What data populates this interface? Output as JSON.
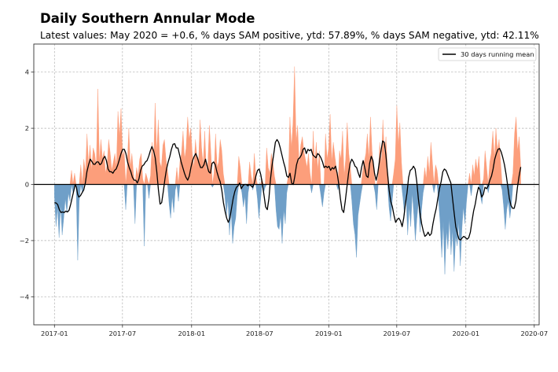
{
  "chart_data": {
    "type": "area",
    "title": "Daily Southern Annular Mode",
    "subtitle": "Latest values: May 2020 = +0.6, % days SAM positive, ytd: 57.89%, % days SAM negative, ytd: 42.11%",
    "xlabel": "",
    "ylabel": "",
    "ylim": [
      -5,
      5
    ],
    "xlim": [
      "2016-11-07",
      "2020-07-14"
    ],
    "start_date": "2017-01-01",
    "end_date": "2020-05-26",
    "grid": true,
    "legend": {
      "position": "top-right",
      "entries": [
        "30 days running mean"
      ]
    },
    "yticks": [
      -4,
      -2,
      0,
      2,
      4
    ],
    "ytick_labels": [
      "−4",
      "−2",
      "0",
      "2",
      "4"
    ],
    "xticks": [
      "2017-01",
      "2017-07",
      "2018-01",
      "2018-07",
      "2019-01",
      "2019-07",
      "2020-01",
      "2020-07"
    ],
    "colors": {
      "positive": "#fc9e7b",
      "negative": "#6f9fc8",
      "mean": "#000000",
      "zero_line": "#000000",
      "grid": "#b0b0b0"
    },
    "daily_step_days": 3,
    "daily_values": [
      -0.4,
      -1.5,
      -0.8,
      -1.9,
      -0.7,
      -1.8,
      -1.2,
      -0.5,
      -1.0,
      -0.3,
      -0.6,
      0.5,
      -0.3,
      0.4,
      -0.1,
      -2.7,
      -0.6,
      0.7,
      -0.3,
      0.9,
      0.4,
      1.8,
      0.7,
      1.4,
      0.5,
      1.3,
      1.1,
      0.6,
      3.4,
      0.8,
      1.6,
      0.9,
      1.2,
      0.4,
      0.7,
      1.6,
      1.1,
      0.5,
      0.8,
      1.1,
      0.6,
      2.6,
      1.7,
      2.7,
      1.0,
      1.2,
      -0.9,
      0.7,
      2.0,
      0.6,
      1.1,
      0.4,
      -1.4,
      0.6,
      0.3,
      0.9,
      1.1,
      0.2,
      -2.2,
      0.4,
      0.2,
      -0.5,
      0.3,
      1.5,
      0.8,
      2.9,
      1.1,
      2.3,
      0.8,
      0.6,
      1.4,
      1.6,
      0.9,
      0.5,
      -0.7,
      -1.2,
      -0.4,
      -1.0,
      -0.2,
      0.6,
      -0.6,
      0.8,
      1.1,
      1.9,
      0.9,
      1.3,
      2.4,
      1.6,
      2.0,
      1.1,
      0.6,
      1.6,
      1.0,
      0.8,
      2.3,
      1.3,
      0.7,
      1.9,
      0.5,
      0.7,
      2.1,
      1.1,
      -0.1,
      0.4,
      1.8,
      0.6,
      0.8,
      1.6,
      1.2,
      0.4,
      -0.4,
      -1.1,
      -0.5,
      -1.8,
      -0.9,
      -2.1,
      -1.5,
      -1.2,
      -0.4,
      1.0,
      0.6,
      -0.3,
      -0.8,
      -0.4,
      -1.4,
      -0.3,
      0.8,
      0.3,
      -0.2,
      1.1,
      0.3,
      -0.5,
      -1.2,
      -0.6,
      0.2,
      -0.3,
      -0.1,
      1.3,
      0.6,
      0.4,
      1.1,
      0.8,
      0.3,
      -0.9,
      -1.5,
      -1.6,
      -1.1,
      -2.1,
      -0.9,
      -1.4,
      -0.3,
      0.3,
      2.4,
      1.3,
      2.2,
      4.2,
      1.5,
      2.1,
      0.7,
      1.4,
      1.7,
      1.2,
      0.9,
      0.6,
      1.1,
      0.4,
      -0.3,
      1.9,
      0.7,
      1.5,
      0.5,
      1.2,
      -0.4,
      -0.8,
      -0.3,
      1.8,
      0.9,
      1.3,
      2.5,
      0.8,
      1.5,
      1.0,
      0.6,
      -0.2,
      1.2,
      0.9,
      1.9,
      0.3,
      0.9,
      2.2,
      1.1,
      0.6,
      -0.6,
      -1.4,
      -1.8,
      -2.6,
      -1.1,
      -0.7,
      -0.3,
      0.5,
      0.8,
      1.1,
      1.8,
      0.9,
      2.4,
      1.2,
      0.6,
      -0.3,
      -0.9,
      0.3,
      1.5,
      0.7,
      2.3,
      1.0,
      1.7,
      0.5,
      -0.8,
      -1.3,
      -0.6,
      0.4,
      0.9,
      2.8,
      1.4,
      2.2,
      0.8,
      -0.5,
      -1.1,
      -0.4,
      -1.8,
      -0.8,
      -1.5,
      -0.3,
      -1.1,
      -2.0,
      -1.2,
      -0.6,
      -1.7,
      -0.9,
      -0.3,
      0.6,
      0.2,
      1.0,
      0.4,
      1.5,
      0.8,
      -0.3,
      0.7,
      0.5,
      -0.6,
      -1.4,
      -2.6,
      -1.3,
      -3.2,
      -1.6,
      -2.3,
      -1.2,
      -2.5,
      -1.6,
      -3.1,
      -1.8,
      -2.2,
      -1.3,
      -2.9,
      -1.6,
      -0.8,
      -1.4,
      -0.6,
      0.0,
      0.4,
      -0.4,
      0.7,
      0.3,
      0.9,
      0.5,
      1.0,
      -0.4,
      -0.7,
      0.2,
      1.2,
      0.6,
      -0.3,
      0.8,
      1.1,
      1.9,
      0.9,
      2.0,
      1.2,
      1.6,
      0.8,
      -0.2,
      -0.8,
      -1.6,
      -0.9,
      -0.6,
      -1.2,
      -0.7,
      0.4,
      1.8,
      2.4,
      1.2,
      1.7,
      0.6
    ],
    "running_mean": [
      [
        0,
        -0.65
      ],
      [
        4,
        -0.66
      ],
      [
        8,
        -0.72
      ],
      [
        12,
        -0.9
      ],
      [
        16,
        -1.0
      ],
      [
        20,
        -0.98
      ],
      [
        24,
        -1.0
      ],
      [
        28,
        -0.95
      ],
      [
        32,
        -0.98
      ],
      [
        36,
        -0.92
      ],
      [
        40,
        -0.7
      ],
      [
        44,
        -0.45
      ],
      [
        48,
        -0.2
      ],
      [
        51,
        0.0
      ],
      [
        54,
        -0.1
      ],
      [
        57,
        -0.35
      ],
      [
        60,
        -0.45
      ],
      [
        64,
        -0.4
      ],
      [
        68,
        -0.3
      ],
      [
        72,
        -0.2
      ],
      [
        76,
        0.05
      ],
      [
        80,
        0.45
      ],
      [
        84,
        0.7
      ],
      [
        88,
        0.9
      ],
      [
        92,
        0.82
      ],
      [
        96,
        0.72
      ],
      [
        100,
        0.72
      ],
      [
        104,
        0.8
      ],
      [
        108,
        0.8
      ],
      [
        112,
        0.7
      ],
      [
        116,
        0.75
      ],
      [
        120,
        0.92
      ],
      [
        124,
        1.0
      ],
      [
        128,
        0.85
      ],
      [
        132,
        0.55
      ],
      [
        136,
        0.45
      ],
      [
        140,
        0.45
      ],
      [
        144,
        0.4
      ],
      [
        148,
        0.5
      ],
      [
        152,
        0.55
      ],
      [
        156,
        0.7
      ],
      [
        160,
        0.9
      ],
      [
        164,
        1.1
      ],
      [
        168,
        1.25
      ],
      [
        172,
        1.25
      ],
      [
        176,
        1.1
      ],
      [
        180,
        0.8
      ],
      [
        184,
        0.6
      ],
      [
        188,
        0.45
      ],
      [
        192,
        0.25
      ],
      [
        196,
        0.15
      ],
      [
        200,
        0.15
      ],
      [
        204,
        0.05
      ],
      [
        208,
        0.2
      ],
      [
        212,
        0.5
      ],
      [
        216,
        0.65
      ],
      [
        220,
        0.7
      ],
      [
        224,
        0.8
      ],
      [
        228,
        0.85
      ],
      [
        232,
        1.0
      ],
      [
        236,
        1.2
      ],
      [
        240,
        1.35
      ],
      [
        244,
        1.2
      ],
      [
        248,
        0.95
      ],
      [
        252,
        0.45
      ],
      [
        256,
        -0.2
      ],
      [
        260,
        -0.7
      ],
      [
        264,
        -0.65
      ],
      [
        268,
        -0.25
      ],
      [
        272,
        0.2
      ],
      [
        276,
        0.55
      ],
      [
        280,
        0.8
      ],
      [
        284,
        1.0
      ],
      [
        288,
        1.25
      ],
      [
        292,
        1.43
      ],
      [
        296,
        1.45
      ],
      [
        300,
        1.3
      ],
      [
        304,
        1.3
      ],
      [
        308,
        1.05
      ],
      [
        312,
        0.8
      ],
      [
        316,
        0.6
      ],
      [
        320,
        0.4
      ],
      [
        324,
        0.25
      ],
      [
        328,
        0.15
      ],
      [
        332,
        0.3
      ],
      [
        336,
        0.6
      ],
      [
        340,
        0.85
      ],
      [
        344,
        1.0
      ],
      [
        348,
        1.1
      ],
      [
        352,
        0.95
      ],
      [
        356,
        0.75
      ],
      [
        360,
        0.6
      ],
      [
        364,
        0.6
      ],
      [
        368,
        0.7
      ],
      [
        372,
        0.9
      ],
      [
        376,
        0.65
      ],
      [
        380,
        0.45
      ],
      [
        384,
        0.4
      ],
      [
        388,
        0.75
      ],
      [
        392,
        0.8
      ],
      [
        396,
        0.7
      ],
      [
        400,
        0.45
      ],
      [
        404,
        0.25
      ],
      [
        408,
        0.1
      ],
      [
        412,
        -0.2
      ],
      [
        416,
        -0.65
      ],
      [
        420,
        -0.95
      ],
      [
        424,
        -1.2
      ],
      [
        428,
        -1.35
      ],
      [
        432,
        -1.2
      ],
      [
        436,
        -0.85
      ],
      [
        440,
        -0.5
      ],
      [
        444,
        -0.25
      ],
      [
        448,
        -0.1
      ],
      [
        452,
        -0.05
      ],
      [
        456,
        0.05
      ],
      [
        460,
        -0.15
      ],
      [
        464,
        -0.05
      ],
      [
        468,
        0.0
      ],
      [
        472,
        0.0
      ],
      [
        476,
        -0.05
      ],
      [
        480,
        0.0
      ],
      [
        484,
        -0.05
      ],
      [
        488,
        -0.1
      ],
      [
        492,
        0.05
      ],
      [
        496,
        0.3
      ],
      [
        500,
        0.5
      ],
      [
        504,
        0.55
      ],
      [
        508,
        0.35
      ],
      [
        512,
        0.0
      ],
      [
        516,
        -0.4
      ],
      [
        520,
        -0.8
      ],
      [
        524,
        -0.9
      ],
      [
        528,
        -0.5
      ],
      [
        532,
        0.2
      ],
      [
        536,
        0.7
      ],
      [
        540,
        1.1
      ],
      [
        544,
        1.5
      ],
      [
        548,
        1.6
      ],
      [
        552,
        1.5
      ],
      [
        556,
        1.3
      ],
      [
        560,
        1.05
      ],
      [
        564,
        0.8
      ],
      [
        568,
        0.6
      ],
      [
        572,
        0.3
      ],
      [
        576,
        0.25
      ],
      [
        580,
        0.4
      ],
      [
        584,
        0.05
      ],
      [
        588,
        0.0
      ],
      [
        592,
        0.3
      ],
      [
        596,
        0.7
      ],
      [
        600,
        0.9
      ],
      [
        604,
        0.95
      ],
      [
        608,
        1.05
      ],
      [
        612,
        1.25
      ],
      [
        616,
        1.3
      ],
      [
        620,
        1.1
      ],
      [
        624,
        1.25
      ],
      [
        628,
        1.2
      ],
      [
        632,
        1.25
      ],
      [
        636,
        1.05
      ],
      [
        640,
        1.0
      ],
      [
        644,
        0.95
      ],
      [
        648,
        1.1
      ],
      [
        652,
        1.05
      ],
      [
        656,
        0.95
      ],
      [
        660,
        0.8
      ],
      [
        664,
        0.6
      ],
      [
        668,
        0.65
      ],
      [
        672,
        0.6
      ],
      [
        676,
        0.65
      ],
      [
        680,
        0.5
      ],
      [
        684,
        0.6
      ],
      [
        688,
        0.55
      ],
      [
        692,
        0.65
      ],
      [
        696,
        0.4
      ],
      [
        700,
        0.0
      ],
      [
        704,
        -0.5
      ],
      [
        708,
        -0.9
      ],
      [
        712,
        -1.0
      ],
      [
        716,
        -0.6
      ],
      [
        720,
        -0.1
      ],
      [
        724,
        0.4
      ],
      [
        728,
        0.75
      ],
      [
        732,
        0.9
      ],
      [
        736,
        0.8
      ],
      [
        740,
        0.65
      ],
      [
        744,
        0.6
      ],
      [
        748,
        0.4
      ],
      [
        752,
        0.25
      ],
      [
        756,
        0.6
      ],
      [
        760,
        0.85
      ],
      [
        764,
        0.6
      ],
      [
        768,
        0.3
      ],
      [
        772,
        0.25
      ],
      [
        776,
        0.75
      ],
      [
        780,
        1.0
      ],
      [
        784,
        0.85
      ],
      [
        788,
        0.4
      ],
      [
        792,
        0.15
      ],
      [
        796,
        0.4
      ],
      [
        800,
        0.8
      ],
      [
        804,
        1.2
      ],
      [
        808,
        1.55
      ],
      [
        812,
        1.5
      ],
      [
        816,
        1.05
      ],
      [
        820,
        0.4
      ],
      [
        824,
        -0.2
      ],
      [
        828,
        -0.6
      ],
      [
        832,
        -0.8
      ],
      [
        836,
        -1.1
      ],
      [
        840,
        -1.35
      ],
      [
        844,
        -1.25
      ],
      [
        848,
        -1.2
      ],
      [
        852,
        -1.3
      ],
      [
        856,
        -1.5
      ],
      [
        860,
        -1.2
      ],
      [
        864,
        -0.7
      ],
      [
        868,
        -0.3
      ],
      [
        872,
        0.25
      ],
      [
        876,
        0.5
      ],
      [
        880,
        0.55
      ],
      [
        884,
        0.65
      ],
      [
        888,
        0.55
      ],
      [
        892,
        0.1
      ],
      [
        896,
        -0.5
      ],
      [
        900,
        -1.0
      ],
      [
        904,
        -1.4
      ],
      [
        908,
        -1.65
      ],
      [
        912,
        -1.85
      ],
      [
        916,
        -1.8
      ],
      [
        920,
        -1.7
      ],
      [
        924,
        -1.82
      ],
      [
        928,
        -1.75
      ],
      [
        932,
        -1.4
      ],
      [
        936,
        -1.1
      ],
      [
        940,
        -0.85
      ],
      [
        944,
        -0.5
      ],
      [
        948,
        -0.15
      ],
      [
        952,
        0.1
      ],
      [
        956,
        0.45
      ],
      [
        960,
        0.55
      ],
      [
        964,
        0.5
      ],
      [
        968,
        0.35
      ],
      [
        972,
        0.2
      ],
      [
        976,
        0.05
      ],
      [
        980,
        -0.5
      ],
      [
        984,
        -1.0
      ],
      [
        988,
        -1.5
      ],
      [
        992,
        -1.75
      ],
      [
        996,
        -1.95
      ],
      [
        1000,
        -1.98
      ],
      [
        1004,
        -1.9
      ],
      [
        1008,
        -1.85
      ],
      [
        1012,
        -1.9
      ],
      [
        1016,
        -1.95
      ],
      [
        1020,
        -1.9
      ],
      [
        1024,
        -1.7
      ],
      [
        1028,
        -1.3
      ],
      [
        1032,
        -0.95
      ],
      [
        1036,
        -0.7
      ],
      [
        1040,
        -0.35
      ],
      [
        1044,
        -0.1
      ],
      [
        1048,
        -0.2
      ],
      [
        1052,
        -0.45
      ],
      [
        1056,
        -0.35
      ],
      [
        1060,
        -0.1
      ],
      [
        1064,
        -0.15
      ],
      [
        1068,
        -0.05
      ],
      [
        1072,
        0.15
      ],
      [
        1076,
        0.3
      ],
      [
        1080,
        0.55
      ],
      [
        1084,
        0.9
      ],
      [
        1088,
        1.1
      ],
      [
        1092,
        1.25
      ],
      [
        1096,
        1.28
      ],
      [
        1100,
        1.15
      ],
      [
        1104,
        0.95
      ],
      [
        1108,
        0.7
      ],
      [
        1112,
        0.35
      ],
      [
        1116,
        -0.05
      ],
      [
        1120,
        -0.5
      ],
      [
        1124,
        -0.75
      ],
      [
        1128,
        -0.85
      ],
      [
        1132,
        -0.85
      ],
      [
        1136,
        -0.6
      ],
      [
        1140,
        -0.1
      ],
      [
        1144,
        0.3
      ],
      [
        1148,
        0.62
      ]
    ],
    "running_mean_x_scale": 1.08
  }
}
